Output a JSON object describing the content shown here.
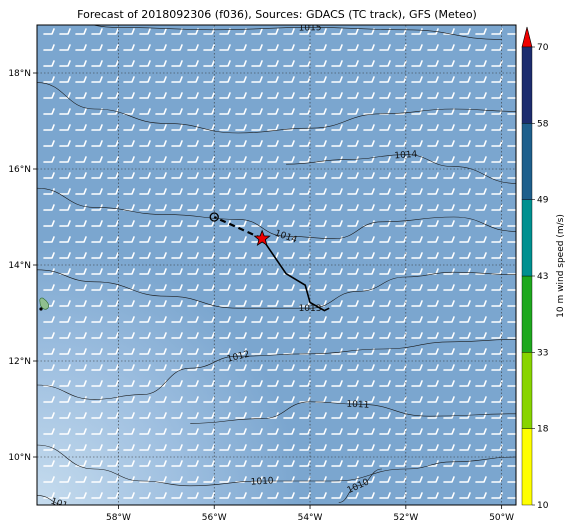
{
  "title": "Forecast of 2018092306 (f036), Sources: GDACS (TC track), GFS (Meteo)",
  "map": {
    "lon_range": [
      -59.7,
      -49.7
    ],
    "lat_range": [
      9.0,
      19.0
    ],
    "x_ticks": [
      "58°W",
      "56°W",
      "54°W",
      "52°W",
      "50°W"
    ],
    "x_tick_values": [
      -58,
      -56,
      -54,
      -52,
      -50
    ],
    "y_ticks": [
      "10°N",
      "12°N",
      "14°N",
      "16°N",
      "18°N"
    ],
    "y_tick_values": [
      10,
      12,
      14,
      16,
      18
    ],
    "gridlines": "dotted",
    "background_color": "#7ba6cf"
  },
  "colorbar": {
    "label": "10 m wind speed (m/s)",
    "ticks": [
      "10",
      "18",
      "33",
      "43",
      "49",
      "58",
      "70"
    ],
    "tick_values": [
      10,
      18,
      33,
      43,
      49,
      58,
      70
    ],
    "colors": [
      "#ffff00",
      "#88d400",
      "#1ea81e",
      "#009090",
      "#1e5f8c",
      "#1c2c6e"
    ],
    "extend_color": "#ee0000"
  },
  "isobars": [
    {
      "label": "1015",
      "points": [
        [
          -59.7,
          19.25
        ],
        [
          -58,
          18.95
        ],
        [
          -56,
          18.9
        ],
        [
          -54,
          18.95
        ],
        [
          -52,
          18.9
        ],
        [
          -50,
          18.7
        ]
      ]
    },
    {
      "label": "",
      "points": [
        [
          -59.7,
          17.8
        ],
        [
          -58.5,
          17.25
        ],
        [
          -57,
          16.95
        ],
        [
          -55.5,
          16.75
        ],
        [
          -54,
          16.85
        ],
        [
          -52.5,
          17.15
        ],
        [
          -51,
          17.25
        ],
        [
          -49.7,
          17.2
        ]
      ]
    },
    {
      "label": "1014",
      "points": [
        [
          -59.7,
          15.6
        ],
        [
          -58.5,
          15.2
        ],
        [
          -57,
          15.05
        ],
        [
          -55.5,
          14.95
        ],
        [
          -54.5,
          14.6
        ],
        [
          -53.5,
          14.55
        ],
        [
          -52.5,
          14.9
        ],
        [
          -51,
          15.0
        ],
        [
          -49.7,
          14.7
        ]
      ]
    },
    {
      "label": "1014",
      "points": [
        [
          -54.5,
          16.1
        ],
        [
          -53.2,
          16.2
        ],
        [
          -52,
          16.3
        ],
        [
          -51,
          16.05
        ],
        [
          -49.7,
          15.7
        ]
      ]
    },
    {
      "label": "1013",
      "points": [
        [
          -59.7,
          13.9
        ],
        [
          -58.5,
          13.65
        ],
        [
          -57,
          13.35
        ],
        [
          -55.5,
          13.1
        ],
        [
          -54,
          13.1
        ],
        [
          -53,
          13.45
        ],
        [
          -52,
          13.75
        ],
        [
          -51,
          13.85
        ],
        [
          -49.7,
          13.8
        ]
      ]
    },
    {
      "label": "1012",
      "points": [
        [
          -59.7,
          11.5
        ],
        [
          -58.5,
          11.2
        ],
        [
          -57.5,
          11.3
        ],
        [
          -56.5,
          11.85
        ],
        [
          -55.5,
          12.1
        ],
        [
          -54,
          12.15
        ],
        [
          -52.5,
          12.25
        ],
        [
          -51,
          12.4
        ],
        [
          -49.7,
          12.45
        ]
      ]
    },
    {
      "label": "1011",
      "points": [
        [
          -56.5,
          10.7
        ],
        [
          -55,
          10.8
        ],
        [
          -54,
          11.15
        ],
        [
          -53,
          11.1
        ],
        [
          -51.5,
          10.85
        ],
        [
          -49.7,
          10.9
        ]
      ]
    },
    {
      "label": "1010",
      "points": [
        [
          -59.7,
          10.25
        ],
        [
          -58.5,
          9.75
        ],
        [
          -57.5,
          9.5
        ],
        [
          -56.5,
          9.4
        ],
        [
          -55,
          9.5
        ],
        [
          -53.5,
          9.5
        ],
        [
          -52,
          9.75
        ],
        [
          -51,
          9.9
        ],
        [
          -49.7,
          10.0
        ]
      ]
    },
    {
      "label": "1010",
      "points": [
        [
          -53.4,
          9.05
        ],
        [
          -53,
          9.4
        ],
        [
          -52.5,
          9.75
        ]
      ]
    },
    {
      "label": "101",
      "points": [
        [
          -59.7,
          9.2
        ],
        [
          -59.1,
          9.0
        ]
      ]
    }
  ],
  "tc_track": {
    "past": [
      [
        -55.0,
        14.55
      ],
      [
        -54.5,
        13.82
      ],
      [
        -54.1,
        13.58
      ],
      [
        -54.0,
        13.22
      ],
      [
        -53.7,
        13.05
      ],
      [
        -53.6,
        13.1
      ]
    ],
    "forecast": [
      [
        -55.0,
        14.55
      ],
      [
        -56.0,
        15.0
      ]
    ],
    "current_position": [
      -55.0,
      14.55
    ],
    "forecast_marker": [
      -56.0,
      15.0
    ]
  },
  "icons": {
    "storm_marker": "red-star-icon",
    "forecast_marker": "open-circle-icon",
    "colorbar_extend": "red-triangle-icon"
  }
}
